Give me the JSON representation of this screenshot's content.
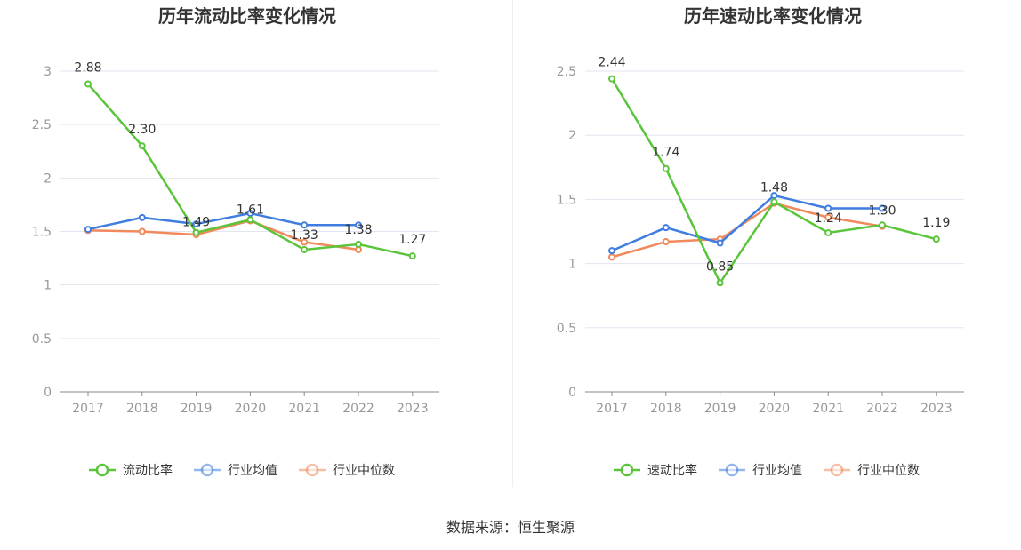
{
  "source": "数据来源：恒生聚源",
  "colors": {
    "main": "#5ac43a",
    "avg": "#3f7de0",
    "median": "#f08a5d",
    "grid": "#e3e6f0",
    "axis": "#888888"
  },
  "chart_data": [
    {
      "type": "line",
      "title": "历年流动比率变化情况",
      "categories": [
        "2017",
        "2018",
        "2019",
        "2020",
        "2021",
        "2022",
        "2023"
      ],
      "ylim": [
        0,
        3
      ],
      "yticks": [
        "0",
        "0.5",
        "1",
        "1.5",
        "2",
        "2.5",
        "3"
      ],
      "ytick_values": [
        0,
        0.5,
        1,
        1.5,
        2,
        2.5,
        3
      ],
      "series": [
        {
          "name": "流动比率",
          "key": "main",
          "values": [
            2.88,
            2.3,
            1.49,
            1.61,
            1.33,
            1.38,
            1.27
          ],
          "labels": [
            "2.88",
            "2.30",
            "1.49",
            "1.61",
            "1.33",
            "1.38",
            "1.27"
          ]
        },
        {
          "name": "行业均值",
          "key": "avg",
          "values": [
            1.52,
            1.63,
            1.57,
            1.67,
            1.56,
            1.56,
            null
          ]
        },
        {
          "name": "行业中位数",
          "key": "median",
          "values": [
            1.51,
            1.5,
            1.47,
            1.6,
            1.4,
            1.33,
            null
          ]
        }
      ]
    },
    {
      "type": "line",
      "title": "历年速动比率变化情况",
      "categories": [
        "2017",
        "2018",
        "2019",
        "2020",
        "2021",
        "2022",
        "2023"
      ],
      "ylim": [
        0,
        2.5
      ],
      "yticks": [
        "0",
        "0.5",
        "1",
        "1.5",
        "2",
        "2.5"
      ],
      "ytick_values": [
        0,
        0.5,
        1,
        1.5,
        2,
        2.5
      ],
      "series": [
        {
          "name": "速动比率",
          "key": "main",
          "values": [
            2.44,
            1.74,
            0.85,
            1.48,
            1.24,
            1.3,
            1.19
          ],
          "labels": [
            "2.44",
            "1.74",
            "0.85",
            "1.48",
            "1.24",
            "1.30",
            "1.19"
          ]
        },
        {
          "name": "行业均值",
          "key": "avg",
          "values": [
            1.1,
            1.28,
            1.16,
            1.53,
            1.43,
            1.43,
            null
          ]
        },
        {
          "name": "行业中位数",
          "key": "median",
          "values": [
            1.05,
            1.17,
            1.19,
            1.47,
            1.36,
            1.29,
            null
          ]
        }
      ]
    }
  ]
}
